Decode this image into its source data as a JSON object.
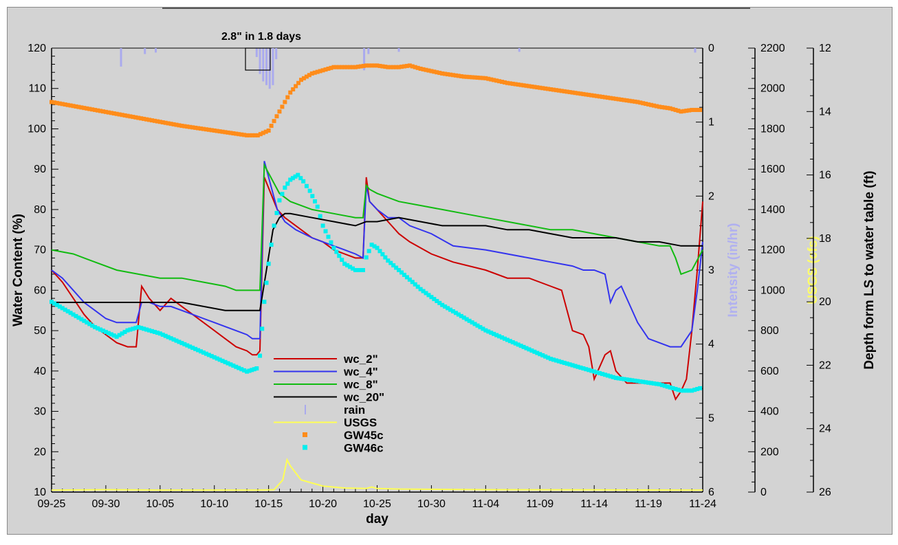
{
  "chart_data": {
    "type": "line",
    "title": "",
    "annotation": "2.8\" in 1.8 days",
    "x_axis": {
      "label": "day",
      "tick_labels": [
        "09-25",
        "09-30",
        "10-05",
        "10-10",
        "10-15",
        "10-20",
        "10-25",
        "10-30",
        "11-04",
        "11-09",
        "11-14",
        "11-19",
        "11-24"
      ],
      "range_days": [
        0,
        60
      ]
    },
    "y_axes": [
      {
        "id": "wc",
        "label": "Water Content (%)",
        "color": "#000000",
        "range": [
          10,
          120
        ],
        "ticks": [
          10,
          20,
          30,
          40,
          50,
          60,
          70,
          80,
          90,
          100,
          110,
          120
        ],
        "side": "left"
      },
      {
        "id": "intensity",
        "label": "Intensity (in/hr)",
        "color": "#b0b0f0",
        "range": [
          0,
          6
        ],
        "ticks": [
          0,
          1,
          2,
          3,
          4,
          5,
          6
        ],
        "side": "right",
        "reversed": true
      },
      {
        "id": "usgs",
        "label": "USGS (cfs)",
        "color": "#ffff66",
        "range": [
          0,
          2200
        ],
        "ticks": [
          0,
          200,
          400,
          600,
          800,
          1000,
          1200,
          1400,
          1600,
          1800,
          2000,
          2200
        ],
        "side": "right"
      },
      {
        "id": "depth",
        "label": "Depth form LS to water table (ft)",
        "color": "#000000",
        "range": [
          12,
          26
        ],
        "ticks": [
          12,
          14,
          16,
          18,
          20,
          22,
          24,
          26
        ],
        "side": "right",
        "reversed": true
      }
    ],
    "legend": {
      "placement": "center-left",
      "entries": [
        {
          "name": "wc_2\"",
          "color": "#cc0000",
          "style": "line"
        },
        {
          "name": "wc_4\"",
          "color": "#3333ee",
          "style": "line"
        },
        {
          "name": "wc_8\"",
          "color": "#11bb11",
          "style": "line"
        },
        {
          "name": "wc_20\"",
          "color": "#000000",
          "style": "line"
        },
        {
          "name": "rain",
          "color": "#aaaaee",
          "style": "bar"
        },
        {
          "name": "USGS",
          "color": "#ffff55",
          "style": "line"
        },
        {
          "name": "GW45c",
          "color": "#ff8c1a",
          "style": "square"
        },
        {
          "name": "GW46c",
          "color": "#00eeee",
          "style": "square"
        }
      ]
    },
    "series": [
      {
        "name": "wc_2\"",
        "axis": "wc",
        "x": [
          0,
          1,
          2,
          3,
          4,
          5,
          6,
          7,
          7.8,
          8.3,
          9,
          10,
          11,
          12,
          13,
          14,
          15,
          16,
          17,
          18,
          18.5,
          18.9,
          19.2,
          19.6,
          20.2,
          20.8,
          21.5,
          22.5,
          24,
          25,
          26,
          27,
          28,
          28.7,
          29,
          29.3,
          30,
          31,
          32,
          33,
          35,
          37,
          40,
          42,
          44,
          46,
          47,
          48,
          49,
          49.5,
          50,
          51,
          51.5,
          52,
          53,
          54,
          55,
          56,
          57,
          57.5,
          58,
          58.5,
          59,
          59.5,
          60
        ],
        "y": [
          65,
          62,
          58,
          54,
          51,
          49,
          47,
          46,
          46,
          61,
          58,
          55,
          58,
          56,
          54,
          52,
          50,
          48,
          46,
          45,
          44,
          44,
          45,
          88,
          84,
          80,
          78,
          76,
          73,
          72,
          70,
          69,
          68,
          68,
          88,
          82,
          80,
          77,
          74,
          72,
          69,
          67,
          65,
          63,
          63,
          61,
          60,
          50,
          49,
          46,
          38,
          44,
          45,
          40,
          37,
          37,
          37,
          37,
          37,
          33,
          35,
          38,
          50,
          65,
          82
        ]
      },
      {
        "name": "wc_4\"",
        "axis": "wc",
        "x": [
          0,
          1,
          2,
          3,
          4,
          5,
          6,
          7,
          7.8,
          8.3,
          9,
          10,
          11,
          12,
          13,
          14,
          15,
          16,
          17,
          18,
          18.5,
          18.9,
          19.2,
          19.6,
          20.2,
          20.8,
          21.5,
          22.5,
          24,
          25,
          26,
          27,
          28,
          28.7,
          29,
          29.3,
          30,
          31,
          32,
          33,
          35,
          37,
          40,
          42,
          44,
          46,
          48,
          49,
          50,
          51,
          51.5,
          52,
          52.5,
          53,
          54,
          55,
          56,
          57,
          58,
          58.5,
          59,
          59.5,
          60
        ],
        "y": [
          65,
          63,
          60,
          57,
          55,
          53,
          52,
          52,
          52,
          57,
          57,
          56,
          56,
          55,
          54,
          53,
          52,
          51,
          50,
          49,
          48,
          48,
          48,
          92,
          86,
          80,
          77,
          75,
          73,
          72,
          71,
          70,
          69,
          68,
          86,
          82,
          80,
          78,
          78,
          76,
          74,
          71,
          70,
          69,
          68,
          67,
          66,
          65,
          65,
          64,
          57,
          60,
          61,
          58,
          52,
          48,
          47,
          46,
          46,
          48,
          50,
          60,
          72
        ]
      },
      {
        "name": "wc_8\"",
        "axis": "wc",
        "x": [
          0,
          2,
          4,
          6,
          8,
          10,
          12,
          14,
          16,
          17,
          18,
          18.9,
          19.2,
          19.6,
          20.2,
          21,
          22,
          24,
          26,
          28,
          28.7,
          29,
          29.3,
          30,
          32,
          34,
          36,
          38,
          40,
          42,
          44,
          46,
          48,
          50,
          52,
          54,
          56,
          57,
          57.5,
          58,
          59,
          60
        ],
        "y": [
          70,
          69,
          67,
          65,
          64,
          63,
          63,
          62,
          61,
          60,
          60,
          60,
          60,
          91,
          88,
          84,
          82,
          80,
          79,
          78,
          78,
          86,
          85,
          84,
          82,
          81,
          80,
          79,
          78,
          77,
          76,
          75,
          75,
          74,
          73,
          72,
          71,
          71,
          68,
          64,
          65,
          70
        ]
      },
      {
        "name": "wc_20\"",
        "axis": "wc",
        "x": [
          0,
          2,
          4,
          6,
          8,
          10,
          12,
          14,
          16,
          18,
          19,
          19.2,
          19.8,
          20.4,
          21,
          21.5,
          22,
          24,
          26,
          28,
          29,
          30,
          32,
          34,
          36,
          38,
          40,
          42,
          44,
          46,
          48,
          50,
          52,
          54,
          56,
          58,
          60
        ],
        "y": [
          57,
          57,
          57,
          57,
          57,
          57,
          57,
          56,
          55,
          55,
          55,
          55,
          65,
          75,
          78,
          79,
          79,
          78,
          77,
          76,
          77,
          77,
          78,
          77,
          76,
          76,
          76,
          75,
          75,
          74,
          73,
          73,
          73,
          72,
          72,
          71,
          71
        ]
      },
      {
        "name": "rain",
        "axis": "intensity",
        "type": "bar",
        "x": [
          6.4,
          8.6,
          9.6,
          18.9,
          19.2,
          19.5,
          19.8,
          20.1,
          20.4,
          20.7,
          28.8,
          29.2,
          32.0,
          43.1,
          59.3
        ],
        "y": [
          0.25,
          0.08,
          0.06,
          0.12,
          0.35,
          0.45,
          0.5,
          0.55,
          0.5,
          0.15,
          0.3,
          0.08,
          0.05,
          0.05,
          0.06
        ]
      },
      {
        "name": "USGS",
        "axis": "usgs",
        "x": [
          0,
          5,
          10,
          15,
          18,
          19,
          20.5,
          21.3,
          21.7,
          22,
          23,
          25,
          27,
          29,
          29.5,
          30,
          32,
          40,
          50,
          60
        ],
        "y": [
          10,
          12,
          10,
          10,
          10,
          10,
          12,
          60,
          160,
          130,
          60,
          30,
          20,
          18,
          25,
          18,
          15,
          12,
          11,
          10
        ]
      },
      {
        "name": "GW45c",
        "axis": "depth",
        "x": [
          0,
          4,
          8,
          12,
          16,
          18,
          19,
          20,
          21,
          22,
          23,
          24,
          25,
          26,
          27,
          28,
          29,
          30,
          31,
          32,
          33,
          34,
          36,
          38,
          40,
          42,
          44,
          46,
          48,
          50,
          52,
          54,
          56,
          57,
          58,
          59,
          60
        ],
        "y": [
          13.7,
          13.95,
          14.2,
          14.45,
          14.65,
          14.75,
          14.75,
          14.6,
          14.0,
          13.4,
          13.0,
          12.8,
          12.7,
          12.6,
          12.6,
          12.6,
          12.55,
          12.55,
          12.6,
          12.6,
          12.55,
          12.65,
          12.8,
          12.9,
          12.95,
          13.1,
          13.2,
          13.3,
          13.4,
          13.5,
          13.6,
          13.7,
          13.85,
          13.9,
          14.0,
          13.95,
          13.95
        ]
      },
      {
        "name": "GW46c",
        "axis": "depth",
        "x": [
          0,
          2,
          4,
          6,
          7,
          8,
          9,
          10,
          12,
          14,
          16,
          18,
          18.9,
          19.2,
          19.6,
          20,
          20.5,
          21,
          21.5,
          22,
          22.7,
          23.2,
          23.8,
          24.5,
          25,
          26,
          27,
          28,
          28.7,
          29,
          29.5,
          30,
          31,
          32,
          34,
          36,
          38,
          40,
          42,
          44,
          46,
          48,
          50,
          52,
          54,
          56,
          58,
          59,
          60
        ],
        "y": [
          20.0,
          20.4,
          20.8,
          21.1,
          20.9,
          20.8,
          20.9,
          21.0,
          21.3,
          21.6,
          21.9,
          22.2,
          22.1,
          21.7,
          20.0,
          18.8,
          17.6,
          16.8,
          16.4,
          16.15,
          16.0,
          16.2,
          16.5,
          17.0,
          17.6,
          18.3,
          18.8,
          19.0,
          19.0,
          18.6,
          18.2,
          18.3,
          18.7,
          19.0,
          19.6,
          20.1,
          20.5,
          20.9,
          21.2,
          21.5,
          21.8,
          22.0,
          22.2,
          22.4,
          22.5,
          22.6,
          22.8,
          22.8,
          22.7
        ]
      }
    ]
  }
}
